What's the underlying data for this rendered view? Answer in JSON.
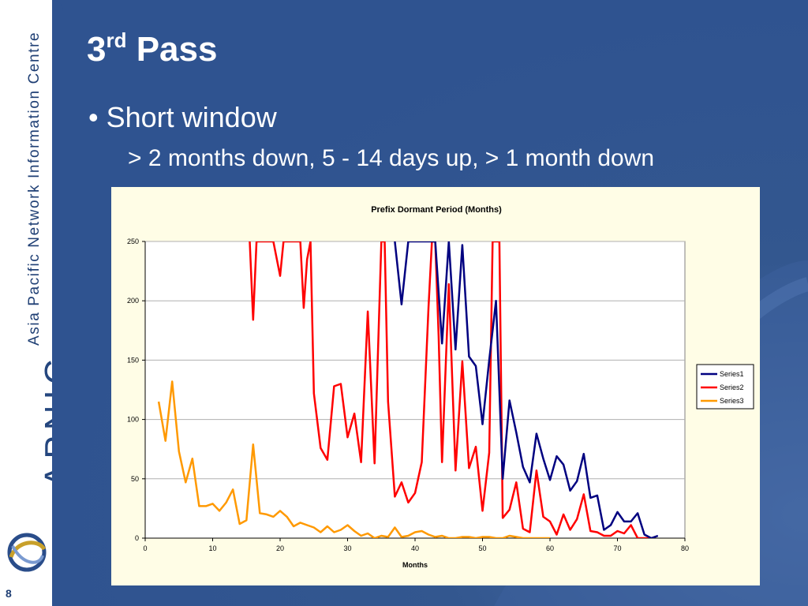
{
  "sidebar": {
    "org_name": "Asia Pacific Network Information Centre",
    "brand": "APNIC",
    "page_number": "8"
  },
  "slide": {
    "title_main": "3",
    "title_sup": "rd",
    "title_rest": " Pass",
    "bullet": "Short window",
    "sub_bullet": "> 2 months down, 5 - 14 days up, > 1 month down"
  },
  "colors": {
    "background": "#2f5390",
    "chart_bg": "#fffde6",
    "series1": "#000080",
    "series2": "#ff0000",
    "series3": "#ff9900"
  },
  "chart_data": {
    "type": "line",
    "title": "Prefix Dormant Period (Months)",
    "xlabel": "Months",
    "ylabel": "",
    "xlim": [
      0,
      80
    ],
    "ylim": [
      0,
      250
    ],
    "x_ticks": [
      0,
      10,
      20,
      30,
      40,
      50,
      60,
      70,
      80
    ],
    "y_ticks": [
      0,
      50,
      100,
      150,
      200,
      250
    ],
    "grid": "horizontal",
    "legend": "right",
    "series": [
      {
        "name": "Series1",
        "color": "#000080",
        "x": [
          37,
          38,
          39,
          43,
          44,
          45,
          46,
          47,
          48,
          49,
          50,
          51,
          52,
          53,
          54,
          55,
          56,
          57,
          58,
          59,
          60,
          61,
          62,
          63,
          64,
          65,
          66,
          67,
          68,
          69,
          70,
          71,
          72,
          73,
          74,
          75,
          76
        ],
        "y": [
          250,
          197,
          250,
          250,
          164,
          250,
          159,
          247,
          153,
          145,
          96,
          150,
          200,
          50,
          116,
          89,
          60,
          47,
          88,
          67,
          49,
          69,
          62,
          40,
          48,
          71,
          34,
          36,
          7,
          11,
          22,
          14,
          14,
          21,
          3,
          0,
          2
        ]
      },
      {
        "name": "Series2",
        "color": "#ff0000",
        "x": [
          15.5,
          16,
          16.5,
          19,
          20,
          20.5,
          23,
          23.5,
          24,
          24.5,
          25,
          26,
          27,
          28,
          29,
          30,
          31,
          32,
          33,
          34,
          35,
          35.5,
          36,
          37,
          38,
          39,
          40,
          41,
          42,
          42.5,
          43,
          43.5,
          44,
          45,
          46,
          47,
          48,
          49,
          50,
          51,
          51.5,
          52,
          52.5,
          53,
          54,
          55,
          56,
          57,
          58,
          59,
          60,
          61,
          62,
          63,
          64,
          65,
          66,
          67,
          68,
          69,
          70,
          71,
          72,
          73,
          74,
          75
        ],
        "y": [
          250,
          184,
          250,
          250,
          221,
          250,
          250,
          194,
          235,
          250,
          122,
          76,
          66,
          128,
          130,
          85,
          105,
          64,
          191,
          63,
          250,
          250,
          115,
          35,
          47,
          30,
          38,
          64,
          195,
          250,
          250,
          170,
          64,
          214,
          57,
          149,
          59,
          77,
          23,
          72,
          250,
          250,
          250,
          17,
          24,
          47,
          8,
          5,
          57,
          18,
          14,
          3,
          20,
          7,
          16,
          37,
          6,
          5,
          2,
          2,
          6,
          4,
          11,
          0,
          0,
          0
        ]
      },
      {
        "name": "Series3",
        "color": "#ff9900",
        "x": [
          2,
          3,
          4,
          5,
          6,
          7,
          8,
          9,
          10,
          11,
          12,
          13,
          14,
          15,
          16,
          17,
          18,
          19,
          20,
          21,
          22,
          23,
          24,
          25,
          26,
          27,
          28,
          29,
          30,
          31,
          32,
          33,
          34,
          35,
          36,
          37,
          38,
          39,
          40,
          41,
          42,
          43,
          44,
          45,
          46,
          47,
          48,
          49,
          50,
          51,
          52,
          53,
          54,
          55,
          56,
          57,
          58,
          59,
          60
        ],
        "y": [
          115,
          82,
          132,
          73,
          47,
          67,
          27,
          27,
          29,
          23,
          30,
          41,
          12,
          15,
          79,
          21,
          20,
          18,
          23,
          18,
          10,
          13,
          11,
          9,
          5,
          10,
          5,
          7,
          11,
          6,
          2,
          4,
          0,
          2,
          1,
          9,
          1,
          2,
          5,
          6,
          3,
          1,
          2,
          0,
          0,
          1,
          1,
          0,
          1,
          1,
          0,
          0,
          2,
          1,
          0,
          0,
          0,
          0,
          0
        ]
      }
    ]
  }
}
